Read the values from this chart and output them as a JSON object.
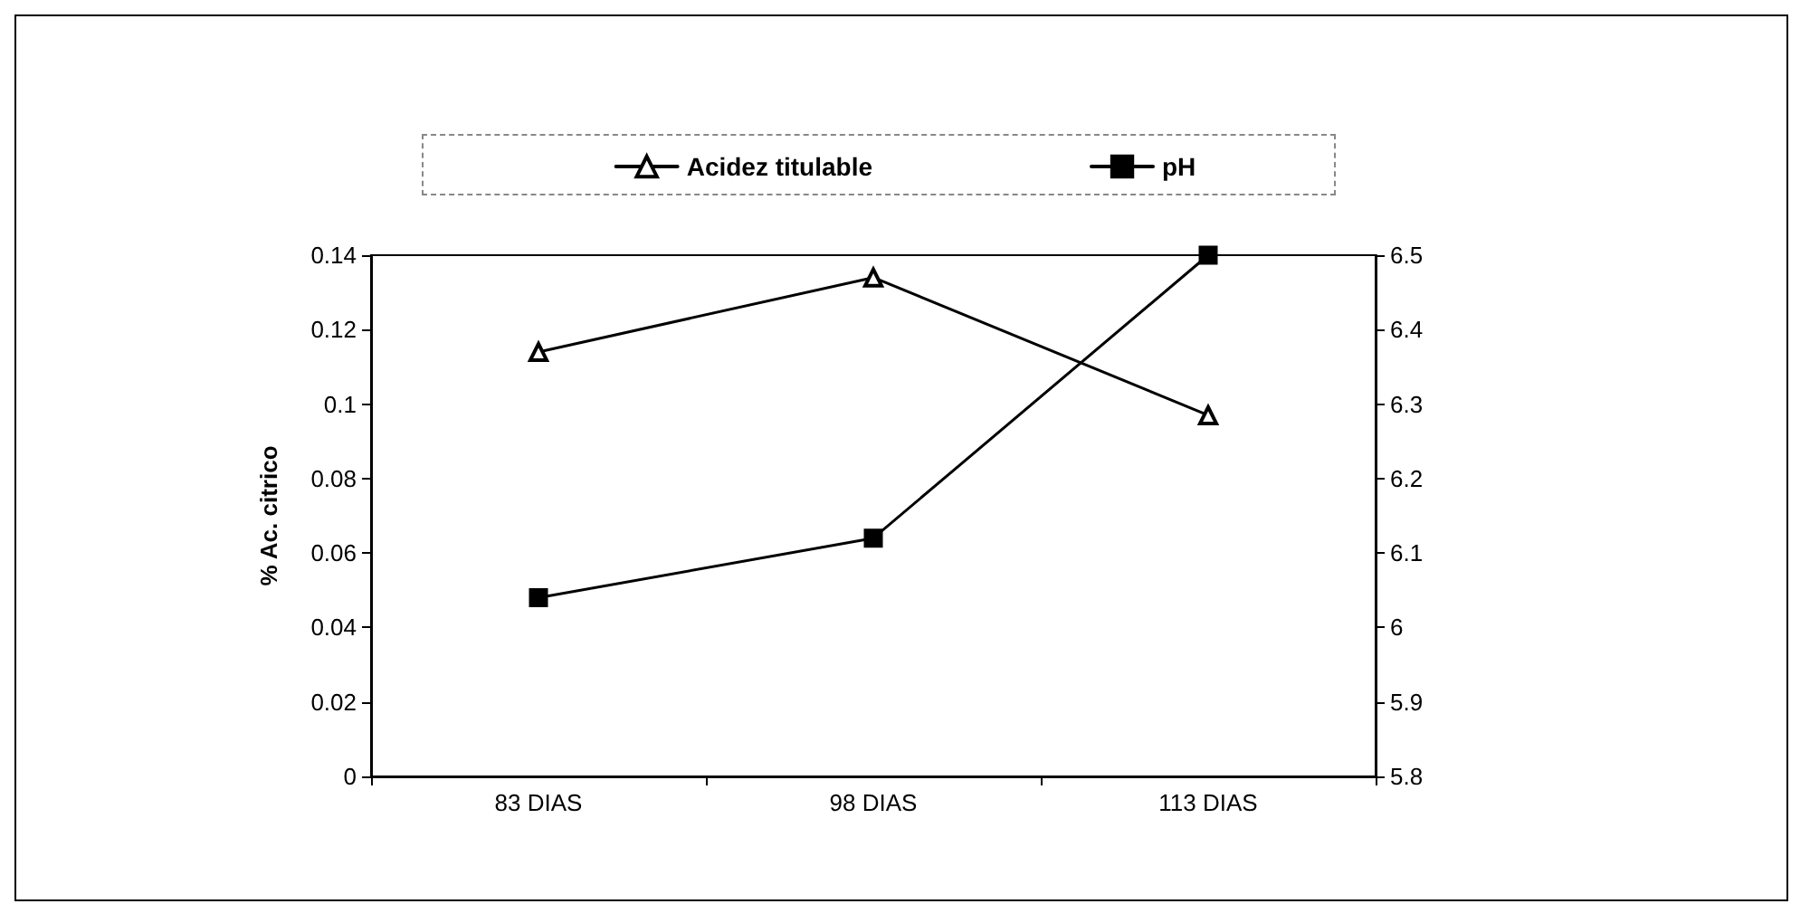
{
  "chart_data": {
    "type": "line",
    "ylabel": "% Ac. citrico",
    "categories": [
      "83 DIAS",
      "98 DIAS",
      "113 DIAS"
    ],
    "series": [
      {
        "name": "Acidez titulable",
        "color": "#000000",
        "marker": "triangle",
        "values": [
          0.114,
          0.134,
          0.097
        ]
      },
      {
        "name": "pH",
        "color": "#000000",
        "marker": "square",
        "axis": "y2",
        "values": [
          6.04,
          6.12,
          6.5
        ]
      }
    ],
    "ylim": [
      0,
      0.14
    ],
    "yticks": [
      0,
      0.02,
      0.04,
      0.06,
      0.08,
      0.1,
      0.12,
      0.14
    ],
    "y2lim": [
      5.8,
      6.5
    ],
    "y2ticks": [
      5.8,
      5.9,
      6,
      6.1,
      6.2,
      6.3,
      6.4,
      6.5
    ],
    "grid": false,
    "legend": "top",
    "line_style": "solid"
  }
}
